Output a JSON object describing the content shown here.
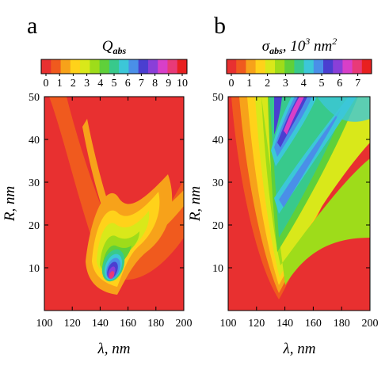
{
  "chart_data": [
    {
      "type": "heatmap",
      "panel_label": "a",
      "colorbar": {
        "title_main": "Q",
        "title_sub": "abs",
        "title_rest": "",
        "title_sup": "",
        "title_tail": "",
        "range": [
          0,
          10
        ],
        "ticks": [
          "0",
          "1",
          "2",
          "3",
          "4",
          "5",
          "6",
          "7",
          "8",
          "9",
          "10"
        ]
      },
      "x_axis": {
        "label": "λ, nm",
        "range": [
          100,
          200
        ],
        "ticks": [
          "100",
          "120",
          "140",
          "160",
          "180",
          "200"
        ]
      },
      "y_axis": {
        "label": "R, nm",
        "range": [
          0,
          50
        ],
        "ticks": [
          "10",
          "20",
          "30",
          "40",
          "50"
        ]
      },
      "features": [
        {
          "name": "peak",
          "x": 144,
          "y": 8,
          "value": 10
        },
        {
          "name": "lower-branch",
          "x": [
            140,
            148,
            160
          ],
          "y": [
            8,
            15,
            25
          ],
          "value": 3
        },
        {
          "name": "upper-branch",
          "x": [
            118,
            140,
            160
          ],
          "y": [
            10,
            30,
            50
          ],
          "value": 2
        }
      ]
    },
    {
      "type": "heatmap",
      "panel_label": "b",
      "colorbar": {
        "title_main": "σ",
        "title_sub": "abs",
        "title_rest": ", 10",
        "title_sup": "3",
        "title_tail": " nm",
        "title_sup2": "2",
        "range": [
          0,
          7.5
        ],
        "ticks": [
          "0",
          "1",
          "2",
          "3",
          "4",
          "5",
          "6",
          "7"
        ]
      },
      "x_axis": {
        "label": "λ, nm",
        "range": [
          100,
          200
        ],
        "ticks": [
          "100",
          "120",
          "140",
          "160",
          "180",
          "200"
        ]
      },
      "y_axis": {
        "label": "R, nm",
        "range": [
          0,
          50
        ],
        "ticks": [
          "10",
          "20",
          "30",
          "40",
          "50"
        ]
      },
      "features": [
        {
          "name": "minimum-edge",
          "x": [
            125,
            140,
            200
          ],
          "y": [
            50,
            4,
            50
          ]
        },
        {
          "name": "ridge-1",
          "x": [
            130,
            175
          ],
          "y": [
            12,
            50
          ],
          "value": 4
        },
        {
          "name": "ridge-2",
          "x": [
            135,
            150
          ],
          "y": [
            30,
            50
          ],
          "value": 7
        }
      ]
    }
  ],
  "colors": {
    "palette": [
      "#e83030",
      "#f05a1e",
      "#f7a21a",
      "#ffd21a",
      "#d9e81a",
      "#9edc1a",
      "#5fd03a",
      "#38c98c",
      "#3cc7d8",
      "#4a8fe8",
      "#4a3fd0",
      "#8a3fd8",
      "#d83fc8",
      "#e83a78",
      "#e82020"
    ]
  }
}
